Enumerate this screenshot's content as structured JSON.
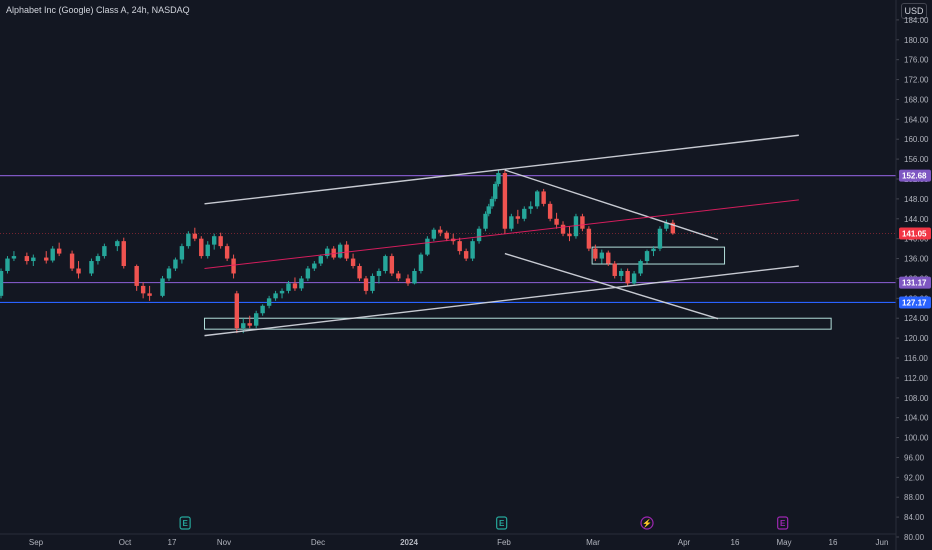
{
  "header": {
    "title": "Alphabet Inc (Google) Class A, 24h, NASDAQ",
    "currency_label": "USD"
  },
  "colors": {
    "background": "#131722",
    "up": "#26a69a",
    "down": "#ef5350",
    "trendline": "#d1d4dc",
    "support_purple": "#7e57c2",
    "support_blue": "#2962ff",
    "regression": "#e91e63",
    "zone": "#b2dfdb",
    "current_price": "#f23645"
  },
  "chart_data": {
    "type": "candlestick",
    "symbol": "Alphabet Inc (Google) Class A",
    "interval": "24h",
    "exchange": "NASDAQ",
    "y_axis": {
      "range": [
        80,
        186
      ],
      "ticks": [
        "184.00",
        "180.00",
        "176.00",
        "172.00",
        "168.00",
        "164.00",
        "160.00",
        "156.00",
        "152.00",
        "148.00",
        "144.00",
        "140.00",
        "136.00",
        "132.00",
        "128.00",
        "124.00",
        "120.00",
        "116.00",
        "112.00",
        "108.00",
        "104.00",
        "100.00",
        "96.00",
        "92.00",
        "88.00",
        "84.00",
        "80.00"
      ]
    },
    "x_axis": {
      "labels": [
        "Sep",
        "Oct",
        "17",
        "Nov",
        "Dec",
        "2024",
        "Feb",
        "Mar",
        "Apr",
        "16",
        "May",
        "16",
        "Jun"
      ]
    },
    "price_badges": [
      {
        "label": "152.68",
        "value": 152.68,
        "kind": "level"
      },
      {
        "label": "141.05",
        "value": 141.05,
        "kind": "last_price"
      },
      {
        "label": "131.17",
        "value": 131.17,
        "kind": "level"
      },
      {
        "label": "127.17",
        "value": 127.17,
        "kind": "level"
      }
    ],
    "horizontal_levels": [
      {
        "value": 152.68,
        "color": "purple"
      },
      {
        "value": 131.17,
        "color": "purple"
      },
      {
        "value": 127.17,
        "color": "blue"
      }
    ],
    "trendlines": [
      {
        "name": "channel-upper",
        "from": [
          "2023-10-30",
          147.0
        ],
        "to": [
          "2024-05-01",
          160.8
        ]
      },
      {
        "name": "channel-lower",
        "from": [
          "2023-10-30",
          120.5
        ],
        "to": [
          "2024-05-01",
          134.5
        ]
      },
      {
        "name": "wedge-upper",
        "from": [
          "2024-01-31",
          153.8
        ],
        "to": [
          "2024-04-06",
          139.8
        ]
      },
      {
        "name": "wedge-lower",
        "from": [
          "2024-01-31",
          137.0
        ],
        "to": [
          "2024-04-06",
          123.9
        ]
      },
      {
        "name": "regression",
        "from": [
          "2023-10-30",
          134.0
        ],
        "to": [
          "2024-05-01",
          147.8
        ]
      }
    ],
    "zones": [
      {
        "name": "demand-zone",
        "from": "2023-10-30",
        "to": "2024-05-11",
        "top": 124.0,
        "bottom": 121.8
      },
      {
        "name": "supply-zone",
        "from": "2024-02-27",
        "to": "2024-04-08",
        "top": 138.3,
        "bottom": 134.9
      }
    ],
    "events": [
      {
        "date": "2023-10-24",
        "label": "E"
      },
      {
        "date": "2024-01-30",
        "label": "E"
      },
      {
        "date": "2024-03-15",
        "label": "⚡"
      },
      {
        "date": "2024-04-26",
        "label": "E"
      }
    ],
    "candles": [
      {
        "d": "2023-08-21",
        "o": 128.0,
        "h": 130.5,
        "l": 126.8,
        "c": 129.8
      },
      {
        "d": "2023-08-23",
        "o": 129.8,
        "h": 132.0,
        "l": 129.0,
        "c": 131.5
      },
      {
        "d": "2023-08-25",
        "o": 131.5,
        "h": 132.2,
        "l": 127.5,
        "c": 128.5
      },
      {
        "d": "2023-08-28",
        "o": 128.5,
        "h": 134.0,
        "l": 128.0,
        "c": 133.5
      },
      {
        "d": "2023-08-30",
        "o": 133.5,
        "h": 136.5,
        "l": 133.0,
        "c": 136.0
      },
      {
        "d": "2023-09-01",
        "o": 136.0,
        "h": 137.5,
        "l": 135.5,
        "c": 136.5
      },
      {
        "d": "2023-09-05",
        "o": 136.5,
        "h": 137.2,
        "l": 134.8,
        "c": 135.5
      },
      {
        "d": "2023-09-07",
        "o": 135.5,
        "h": 136.8,
        "l": 134.5,
        "c": 136.2
      },
      {
        "d": "2023-09-11",
        "o": 136.2,
        "h": 137.5,
        "l": 135.0,
        "c": 135.6
      },
      {
        "d": "2023-09-13",
        "o": 135.6,
        "h": 138.5,
        "l": 135.2,
        "c": 138.0
      },
      {
        "d": "2023-09-15",
        "o": 138.0,
        "h": 139.2,
        "l": 136.5,
        "c": 137.0
      },
      {
        "d": "2023-09-19",
        "o": 137.0,
        "h": 137.6,
        "l": 133.5,
        "c": 134.0
      },
      {
        "d": "2023-09-21",
        "o": 134.0,
        "h": 135.5,
        "l": 132.0,
        "c": 133.0
      },
      {
        "d": "2023-09-25",
        "o": 133.0,
        "h": 136.0,
        "l": 132.5,
        "c": 135.5
      },
      {
        "d": "2023-09-27",
        "o": 135.5,
        "h": 137.0,
        "l": 134.8,
        "c": 136.5
      },
      {
        "d": "2023-09-29",
        "o": 136.5,
        "h": 139.0,
        "l": 136.0,
        "c": 138.5
      },
      {
        "d": "2023-10-03",
        "o": 138.5,
        "h": 139.8,
        "l": 137.5,
        "c": 139.5
      },
      {
        "d": "2023-10-05",
        "o": 139.5,
        "h": 140.2,
        "l": 134.0,
        "c": 134.5
      },
      {
        "d": "2023-10-09",
        "o": 134.5,
        "h": 134.8,
        "l": 129.5,
        "c": 130.5
      },
      {
        "d": "2023-10-11",
        "o": 130.5,
        "h": 131.2,
        "l": 128.0,
        "c": 129.0
      },
      {
        "d": "2023-10-13",
        "o": 129.0,
        "h": 130.5,
        "l": 127.5,
        "c": 128.5
      },
      {
        "d": "2023-10-17",
        "o": 128.5,
        "h": 132.5,
        "l": 128.2,
        "c": 132.0
      },
      {
        "d": "2023-10-19",
        "o": 132.0,
        "h": 134.5,
        "l": 131.5,
        "c": 134.0
      },
      {
        "d": "2023-10-21",
        "o": 134.0,
        "h": 136.2,
        "l": 133.5,
        "c": 135.8
      },
      {
        "d": "2023-10-23",
        "o": 135.8,
        "h": 139.0,
        "l": 135.0,
        "c": 138.5
      },
      {
        "d": "2023-10-25",
        "o": 138.5,
        "h": 141.5,
        "l": 138.0,
        "c": 141.0
      },
      {
        "d": "2023-10-27",
        "o": 141.0,
        "h": 142.2,
        "l": 139.5,
        "c": 140.0
      },
      {
        "d": "2023-10-29",
        "o": 140.0,
        "h": 140.5,
        "l": 136.0,
        "c": 136.5
      },
      {
        "d": "2023-10-31",
        "o": 136.5,
        "h": 139.5,
        "l": 136.0,
        "c": 138.8
      },
      {
        "d": "2023-11-02",
        "o": 138.8,
        "h": 141.0,
        "l": 137.8,
        "c": 140.5
      },
      {
        "d": "2023-11-04",
        "o": 140.5,
        "h": 141.2,
        "l": 138.0,
        "c": 138.5
      },
      {
        "d": "2023-11-06",
        "o": 138.5,
        "h": 139.0,
        "l": 135.5,
        "c": 136.0
      },
      {
        "d": "2023-11-08",
        "o": 136.0,
        "h": 136.8,
        "l": 132.0,
        "c": 133.0
      },
      {
        "d": "2023-11-09",
        "o": 129.0,
        "h": 129.5,
        "l": 121.0,
        "c": 122.0
      },
      {
        "d": "2023-11-11",
        "o": 122.0,
        "h": 124.0,
        "l": 121.0,
        "c": 123.0
      },
      {
        "d": "2023-11-13",
        "o": 123.0,
        "h": 124.5,
        "l": 122.0,
        "c": 122.5
      },
      {
        "d": "2023-11-15",
        "o": 122.5,
        "h": 125.5,
        "l": 122.0,
        "c": 125.0
      },
      {
        "d": "2023-11-17",
        "o": 125.0,
        "h": 126.8,
        "l": 124.5,
        "c": 126.5
      },
      {
        "d": "2023-11-19",
        "o": 126.5,
        "h": 128.5,
        "l": 126.0,
        "c": 128.0
      },
      {
        "d": "2023-11-21",
        "o": 128.0,
        "h": 129.5,
        "l": 127.5,
        "c": 129.0
      },
      {
        "d": "2023-11-23",
        "o": 129.0,
        "h": 130.0,
        "l": 128.0,
        "c": 129.5
      },
      {
        "d": "2023-11-25",
        "o": 129.5,
        "h": 131.5,
        "l": 129.0,
        "c": 131.0
      },
      {
        "d": "2023-11-27",
        "o": 131.0,
        "h": 132.2,
        "l": 129.5,
        "c": 130.0
      },
      {
        "d": "2023-11-29",
        "o": 130.0,
        "h": 132.5,
        "l": 129.5,
        "c": 132.0
      },
      {
        "d": "2023-12-01",
        "o": 132.0,
        "h": 134.5,
        "l": 131.5,
        "c": 134.0
      },
      {
        "d": "2023-12-03",
        "o": 134.0,
        "h": 135.5,
        "l": 133.5,
        "c": 135.0
      },
      {
        "d": "2023-12-05",
        "o": 135.0,
        "h": 136.8,
        "l": 134.5,
        "c": 136.5
      },
      {
        "d": "2023-12-07",
        "o": 136.5,
        "h": 138.5,
        "l": 136.0,
        "c": 138.0
      },
      {
        "d": "2023-12-09",
        "o": 138.0,
        "h": 138.5,
        "l": 135.8,
        "c": 136.2
      },
      {
        "d": "2023-12-11",
        "o": 136.2,
        "h": 139.2,
        "l": 136.0,
        "c": 138.8
      },
      {
        "d": "2023-12-13",
        "o": 138.8,
        "h": 139.5,
        "l": 135.5,
        "c": 136.0
      },
      {
        "d": "2023-12-15",
        "o": 136.0,
        "h": 137.0,
        "l": 134.0,
        "c": 134.5
      },
      {
        "d": "2023-12-17",
        "o": 134.5,
        "h": 135.0,
        "l": 131.5,
        "c": 132.0
      },
      {
        "d": "2023-12-19",
        "o": 132.0,
        "h": 132.5,
        "l": 128.8,
        "c": 129.5
      },
      {
        "d": "2023-12-21",
        "o": 129.5,
        "h": 133.0,
        "l": 129.0,
        "c": 132.5
      },
      {
        "d": "2023-12-23",
        "o": 132.5,
        "h": 134.0,
        "l": 131.0,
        "c": 133.5
      },
      {
        "d": "2023-12-25",
        "o": 133.5,
        "h": 136.8,
        "l": 133.0,
        "c": 136.5
      },
      {
        "d": "2023-12-27",
        "o": 136.5,
        "h": 137.0,
        "l": 132.5,
        "c": 133.0
      },
      {
        "d": "2023-12-29",
        "o": 133.0,
        "h": 133.5,
        "l": 131.5,
        "c": 132.0
      },
      {
        "d": "2024-01-01",
        "o": 132.0,
        "h": 132.8,
        "l": 130.5,
        "c": 131.0
      },
      {
        "d": "2024-01-03",
        "o": 131.0,
        "h": 134.0,
        "l": 130.8,
        "c": 133.5
      },
      {
        "d": "2024-01-05",
        "o": 133.5,
        "h": 137.2,
        "l": 133.0,
        "c": 136.8
      },
      {
        "d": "2024-01-07",
        "o": 136.8,
        "h": 140.5,
        "l": 136.5,
        "c": 140.0
      },
      {
        "d": "2024-01-09",
        "o": 140.0,
        "h": 142.2,
        "l": 139.5,
        "c": 141.8
      },
      {
        "d": "2024-01-11",
        "o": 141.8,
        "h": 142.5,
        "l": 140.5,
        "c": 141.2
      },
      {
        "d": "2024-01-13",
        "o": 141.2,
        "h": 141.6,
        "l": 139.5,
        "c": 140.0
      },
      {
        "d": "2024-01-15",
        "o": 140.0,
        "h": 141.0,
        "l": 138.8,
        "c": 139.5
      },
      {
        "d": "2024-01-17",
        "o": 139.5,
        "h": 140.2,
        "l": 136.8,
        "c": 137.5
      },
      {
        "d": "2024-01-19",
        "o": 137.5,
        "h": 138.0,
        "l": 135.5,
        "c": 136.0
      },
      {
        "d": "2024-01-21",
        "o": 136.0,
        "h": 140.0,
        "l": 135.5,
        "c": 139.5
      },
      {
        "d": "2024-01-23",
        "o": 139.5,
        "h": 142.5,
        "l": 139.0,
        "c": 142.0
      },
      {
        "d": "2024-01-25",
        "o": 142.0,
        "h": 145.5,
        "l": 141.5,
        "c": 145.0
      },
      {
        "d": "2024-01-26",
        "o": 145.0,
        "h": 147.0,
        "l": 144.5,
        "c": 146.5
      },
      {
        "d": "2024-01-27",
        "o": 146.5,
        "h": 148.5,
        "l": 146.0,
        "c": 148.0
      },
      {
        "d": "2024-01-28",
        "o": 148.0,
        "h": 151.5,
        "l": 147.5,
        "c": 151.0
      },
      {
        "d": "2024-01-29",
        "o": 151.0,
        "h": 153.8,
        "l": 150.5,
        "c": 153.2
      },
      {
        "d": "2024-01-31",
        "o": 153.2,
        "h": 153.8,
        "l": 141.0,
        "c": 142.0
      },
      {
        "d": "2024-02-02",
        "o": 142.0,
        "h": 145.0,
        "l": 141.5,
        "c": 144.5
      },
      {
        "d": "2024-02-04",
        "o": 144.5,
        "h": 145.8,
        "l": 143.0,
        "c": 144.0
      },
      {
        "d": "2024-02-06",
        "o": 144.0,
        "h": 146.5,
        "l": 143.5,
        "c": 146.0
      },
      {
        "d": "2024-02-08",
        "o": 146.0,
        "h": 147.5,
        "l": 145.0,
        "c": 146.5
      },
      {
        "d": "2024-02-10",
        "o": 146.5,
        "h": 149.8,
        "l": 146.0,
        "c": 149.5
      },
      {
        "d": "2024-02-12",
        "o": 149.5,
        "h": 150.0,
        "l": 146.5,
        "c": 147.0
      },
      {
        "d": "2024-02-14",
        "o": 147.0,
        "h": 147.5,
        "l": 143.5,
        "c": 144.0
      },
      {
        "d": "2024-02-16",
        "o": 144.0,
        "h": 145.2,
        "l": 142.0,
        "c": 142.8
      },
      {
        "d": "2024-02-18",
        "o": 142.8,
        "h": 143.5,
        "l": 140.5,
        "c": 141.0
      },
      {
        "d": "2024-02-20",
        "o": 141.0,
        "h": 142.5,
        "l": 139.5,
        "c": 140.5
      },
      {
        "d": "2024-02-22",
        "o": 140.5,
        "h": 145.0,
        "l": 140.0,
        "c": 144.5
      },
      {
        "d": "2024-02-24",
        "o": 144.5,
        "h": 145.0,
        "l": 141.5,
        "c": 142.0
      },
      {
        "d": "2024-02-26",
        "o": 142.0,
        "h": 142.5,
        "l": 137.5,
        "c": 138.0
      },
      {
        "d": "2024-02-28",
        "o": 138.0,
        "h": 138.8,
        "l": 135.5,
        "c": 136.0
      },
      {
        "d": "2024-03-01",
        "o": 136.0,
        "h": 137.8,
        "l": 135.0,
        "c": 137.2
      },
      {
        "d": "2024-03-03",
        "o": 137.2,
        "h": 137.6,
        "l": 134.5,
        "c": 135.0
      },
      {
        "d": "2024-03-05",
        "o": 135.0,
        "h": 135.5,
        "l": 132.0,
        "c": 132.5
      },
      {
        "d": "2024-03-07",
        "o": 132.5,
        "h": 134.0,
        "l": 131.5,
        "c": 133.5
      },
      {
        "d": "2024-03-09",
        "o": 133.5,
        "h": 134.0,
        "l": 130.5,
        "c": 131.0
      },
      {
        "d": "2024-03-11",
        "o": 131.0,
        "h": 133.5,
        "l": 130.8,
        "c": 133.0
      },
      {
        "d": "2024-03-13",
        "o": 133.0,
        "h": 135.8,
        "l": 132.5,
        "c": 135.5
      },
      {
        "d": "2024-03-15",
        "o": 135.5,
        "h": 137.8,
        "l": 135.0,
        "c": 137.5
      },
      {
        "d": "2024-03-17",
        "o": 137.5,
        "h": 138.5,
        "l": 136.5,
        "c": 138.0
      },
      {
        "d": "2024-03-19",
        "o": 138.0,
        "h": 142.5,
        "l": 137.5,
        "c": 142.0
      },
      {
        "d": "2024-03-21",
        "o": 142.0,
        "h": 143.8,
        "l": 141.5,
        "c": 143.2
      },
      {
        "d": "2024-03-23",
        "o": 143.2,
        "h": 143.8,
        "l": 140.8,
        "c": 141.05
      }
    ]
  }
}
